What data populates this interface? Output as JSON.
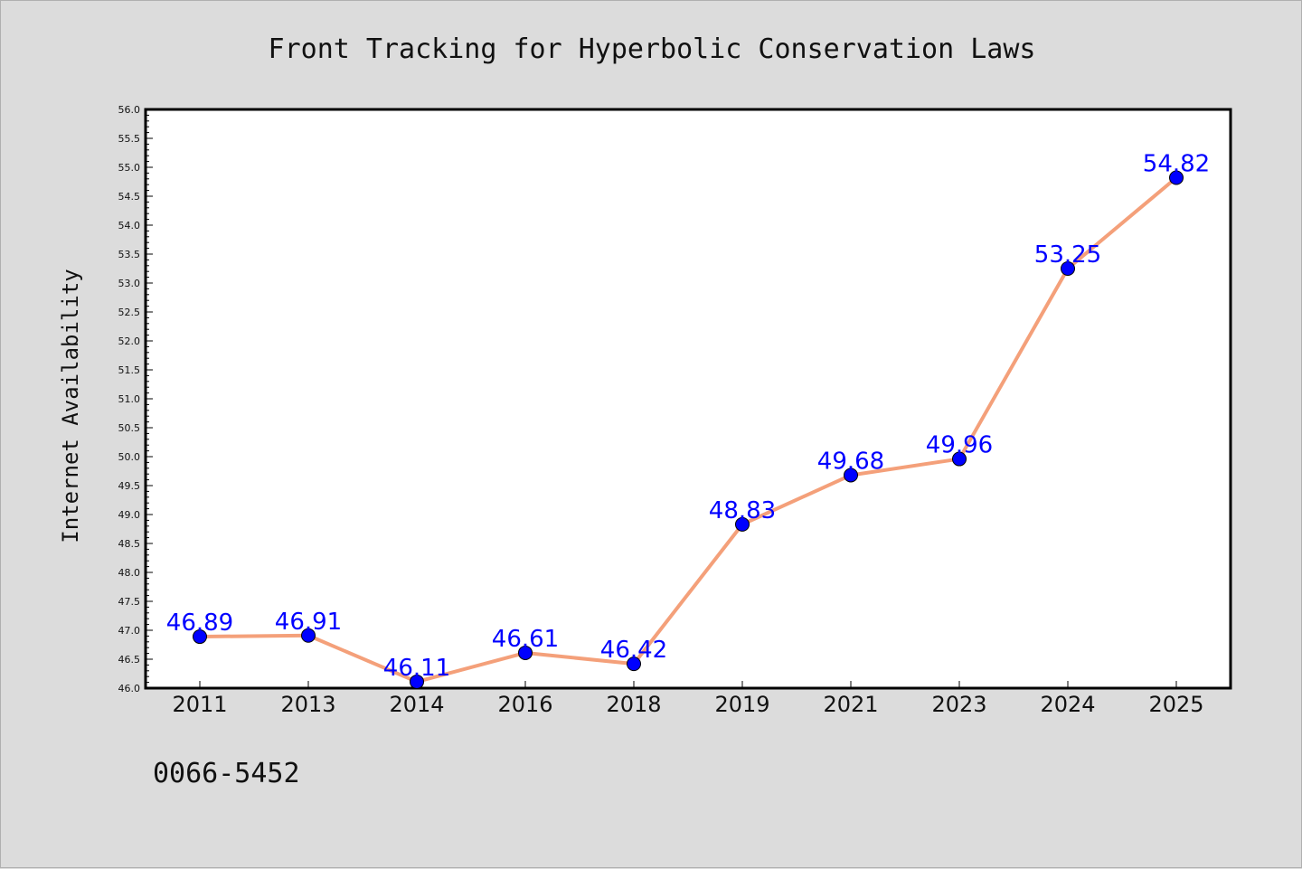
{
  "chart_data": {
    "type": "line",
    "title": "Front Tracking for Hyperbolic Conservation Laws",
    "xlabel": "",
    "ylabel": "Internet Availability",
    "categories": [
      "2011",
      "2013",
      "2014",
      "2016",
      "2018",
      "2019",
      "2021",
      "2023",
      "2024",
      "2025"
    ],
    "series": [
      {
        "values": [
          46.89,
          46.91,
          46.11,
          46.61,
          46.42,
          48.83,
          49.68,
          49.96,
          53.25,
          54.82
        ]
      }
    ],
    "data_labels": [
      "46.89",
      "46.91",
      "46.11",
      "46.61",
      "46.42",
      "48.83",
      "49.68",
      "49.96",
      "53.25",
      "54.82"
    ],
    "ylim": [
      46.0,
      56.0
    ],
    "yticks": [
      "46.0",
      "46.5",
      "47.0",
      "47.5",
      "48.0",
      "48.5",
      "49.0",
      "49.5",
      "50.0",
      "50.5",
      "51.0",
      "51.5",
      "52.0",
      "52.5",
      "53.0",
      "53.5",
      "54.0",
      "54.5",
      "55.0",
      "55.5",
      "56.0"
    ],
    "grid": false,
    "legend": "none",
    "colors": {
      "line": "#f4a07a",
      "marker": "#0000ff",
      "label": "#0000ff",
      "background": "#dcdcdc",
      "plot_background": "#ffffff"
    }
  },
  "footer": {
    "code": "0066-5452"
  }
}
